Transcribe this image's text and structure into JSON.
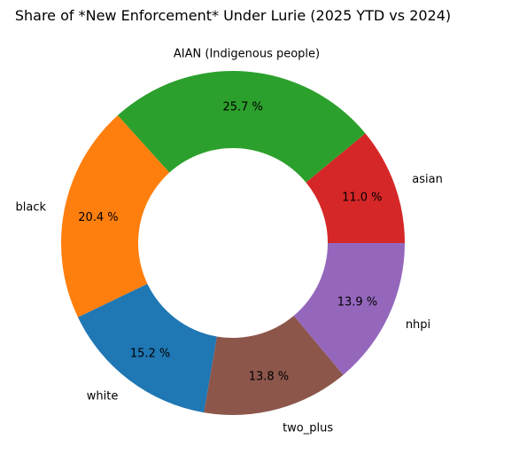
{
  "chart_data": {
    "type": "pie",
    "variant": "donut",
    "title": "Share of *New Enforcement* Under Lurie (2025 YTD vs 2024)",
    "categories": [
      "asian",
      "AIAN (Indigenous people)",
      "black",
      "white",
      "two_plus",
      "nhpi"
    ],
    "values": [
      11.0,
      25.7,
      20.4,
      15.2,
      13.8,
      13.9
    ],
    "value_labels": [
      "11.0 %",
      "25.7 %",
      "20.4 %",
      "15.2 %",
      "13.8 %",
      "13.9 %"
    ],
    "colors": [
      "#d62728",
      "#2ca02c",
      "#ff7f0e",
      "#1f77b4",
      "#8c564b",
      "#9467bd"
    ],
    "start_angle_deg": 0,
    "direction": "counterclockwise-from-right",
    "legend": "none"
  }
}
